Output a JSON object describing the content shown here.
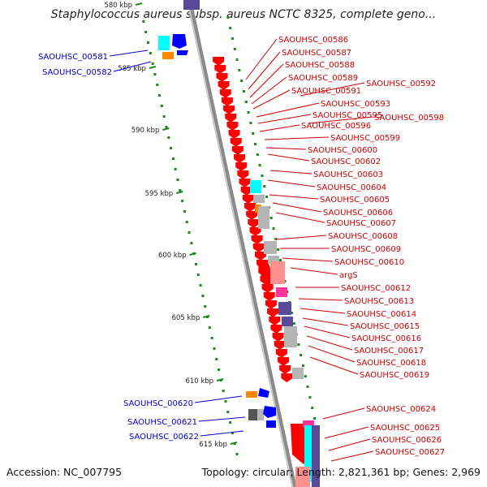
{
  "title": "Staphylococcus aureus subsp. aureus NCTC 8325, complete geno...",
  "footer": {
    "accession_label": "Accession:",
    "accession": "NC_007795",
    "topology_label": "Topology:",
    "topology": "circular",
    "length_label": "Length:",
    "length": "2,821,361 bp",
    "genes_label": "Genes:",
    "genes": "2,969"
  },
  "colors": {
    "backbone": "#8a8a8a",
    "gene_red": "#ff0000",
    "gene_blue": "#0000ff",
    "label_red": "#cc0000",
    "label_blue": "#0000cc",
    "tick_green": "#1a8a1a",
    "cyan": "#00ffff",
    "orange": "#ff8800",
    "gray": "#b4b4b4",
    "navy": "#5a4a9a",
    "pink": "#ff3399",
    "salmon": "#ff9090"
  },
  "ticks": [
    "580 kbp",
    "585 kbp",
    "590 kbp",
    "595 kbp",
    "600 kbp",
    "605 kbp",
    "610 kbp",
    "615 kbp"
  ],
  "left_labels": [
    "SAOUHSC_00581",
    "SAOUHSC_00582",
    "SAOUHSC_00620",
    "SAOUHSC_00621",
    "SAOUHSC_00622"
  ],
  "right_labels": [
    "SAOUHSC_00586",
    "SAOUHSC_00587",
    "SAOUHSC_00588",
    "SAOUHSC_00589",
    "SAOUHSC_00591",
    "SAOUHSC_00592",
    "SAOUHSC_00593",
    "SAOUHSC_00595",
    "SAOUHSC_00598",
    "SAOUHSC_00596",
    "SAOUHSC_00599",
    "SAOUHSC_00600",
    "SAOUHSC_00602",
    "SAOUHSC_00603",
    "SAOUHSC_00604",
    "SAOUHSC_00605",
    "SAOUHSC_00606",
    "SAOUHSC_00607",
    "SAOUHSC_00608",
    "SAOUHSC_00609",
    "SAOUHSC_00610",
    "argS",
    "SAOUHSC_00612",
    "SAOUHSC_00613",
    "SAOUHSC_00614",
    "SAOUHSC_00615",
    "SAOUHSC_00616",
    "SAOUHSC_00617",
    "SAOUHSC_00618",
    "SAOUHSC_00619",
    "SAOUHSC_00624",
    "SAOUHSC_00625",
    "SAOUHSC_00626",
    "SAOUHSC_00627"
  ]
}
